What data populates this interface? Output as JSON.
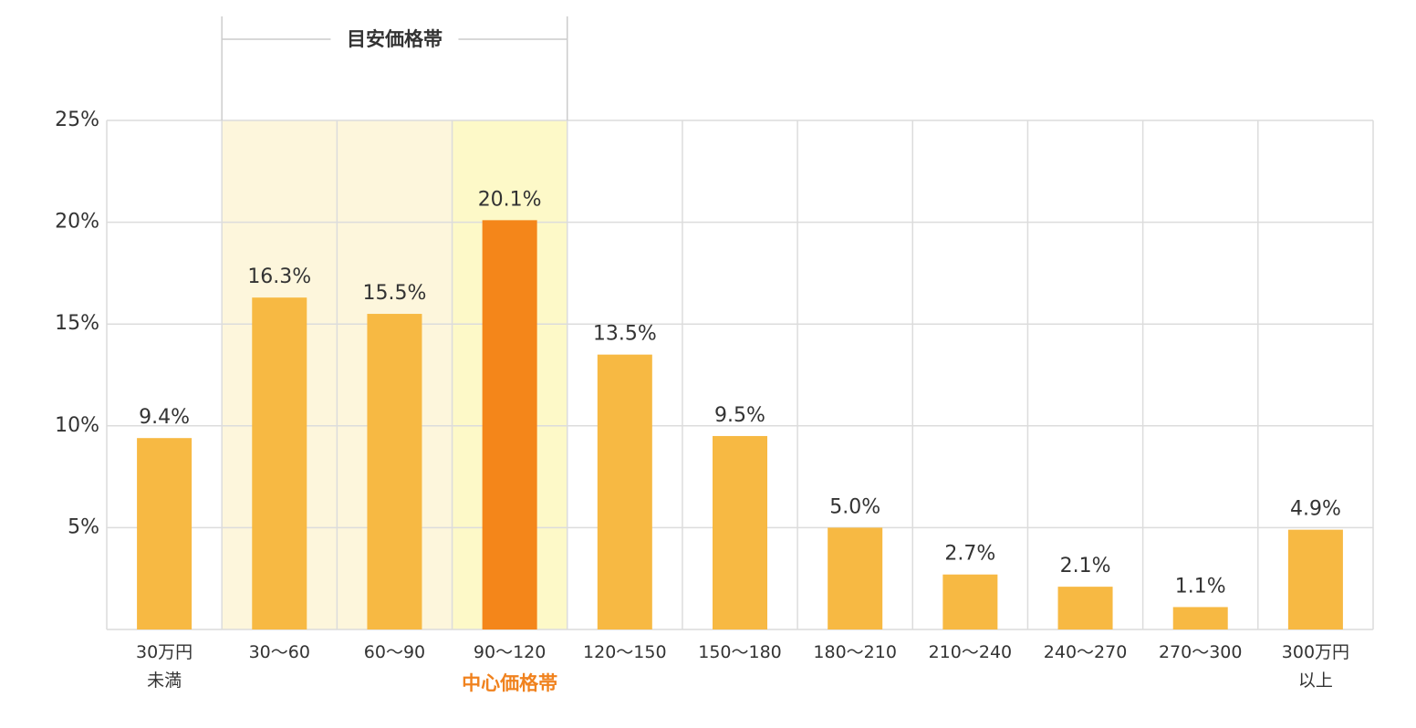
{
  "chart_data": {
    "type": "bar",
    "categories": [
      "30万円\n未満",
      "30〜60",
      "60〜90",
      "90〜120",
      "120〜150",
      "150〜180",
      "180〜210",
      "210〜240",
      "240〜270",
      "270〜300",
      "300万円\n以上"
    ],
    "values": [
      9.4,
      16.3,
      15.5,
      20.1,
      13.5,
      9.5,
      5.0,
      2.7,
      2.1,
      1.1,
      4.9
    ],
    "value_labels": [
      "9.4%",
      "16.3%",
      "15.5%",
      "20.1%",
      "13.5%",
      "9.5%",
      "5.0%",
      "2.7%",
      "2.1%",
      "1.1%",
      "4.9%"
    ],
    "colors": [
      "#f7b943",
      "#f7b943",
      "#f7b943",
      "#f4861a",
      "#f7b943",
      "#f7b943",
      "#f7b943",
      "#f7b943",
      "#f7b943",
      "#f7b943",
      "#f7b943"
    ],
    "ylim": [
      0,
      25
    ],
    "yticks": [
      {
        "value": 5,
        "label": "5%"
      },
      {
        "value": 10,
        "label": "10%"
      },
      {
        "value": 15,
        "label": "15%"
      },
      {
        "value": 20,
        "label": "20%"
      },
      {
        "value": 25,
        "label": "25%"
      }
    ],
    "grid": true,
    "annotations": [
      {
        "text": "目安価格帯",
        "from": "30〜60",
        "to": "90〜120"
      },
      {
        "text": "中心価格帯",
        "from": "90〜120",
        "to": "90〜120",
        "color": "#f0821e"
      }
    ]
  }
}
